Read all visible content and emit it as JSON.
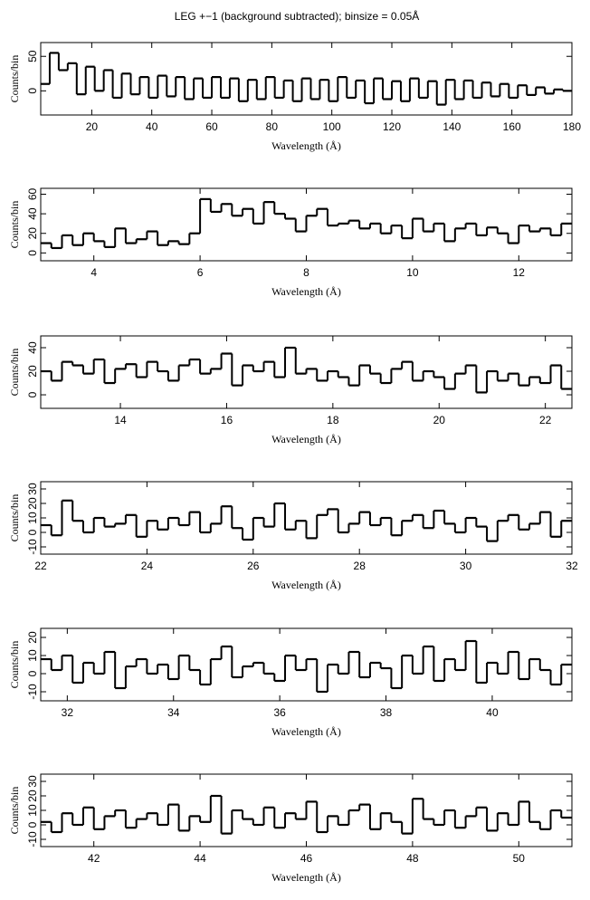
{
  "chart_data": [
    {
      "type": "step",
      "title": "LEG +−1 (background subtracted); binsize = 0.05Å",
      "xlabel": "Wavelength (Å)",
      "ylabel": "Counts/bin",
      "color": "#000000",
      "xlim": [
        3,
        180
      ],
      "ylim": [
        -35,
        70
      ],
      "xticks": [
        20,
        40,
        60,
        80,
        100,
        120,
        140,
        160,
        180
      ],
      "yticks": [
        0,
        50
      ],
      "x": [
        3,
        6,
        9,
        12,
        15,
        18,
        21,
        24,
        27,
        30,
        33,
        36,
        39,
        42,
        45,
        48,
        51,
        54,
        57,
        60,
        63,
        66,
        69,
        72,
        75,
        78,
        81,
        84,
        87,
        90,
        93,
        96,
        99,
        102,
        105,
        108,
        111,
        114,
        117,
        120,
        123,
        126,
        129,
        132,
        135,
        138,
        141,
        144,
        147,
        150,
        153,
        156,
        159,
        162,
        165,
        168,
        171,
        174,
        177,
        180
      ],
      "values": [
        10,
        55,
        30,
        40,
        -5,
        35,
        0,
        30,
        -10,
        25,
        -5,
        20,
        -10,
        22,
        -8,
        20,
        -12,
        18,
        -10,
        20,
        -10,
        18,
        -15,
        16,
        -12,
        20,
        -10,
        15,
        -15,
        18,
        -12,
        16,
        -15,
        20,
        -10,
        15,
        -18,
        18,
        -12,
        14,
        -15,
        18,
        -10,
        14,
        -20,
        16,
        -12,
        15,
        -10,
        12,
        -8,
        10,
        -10,
        8,
        -6,
        5,
        -4,
        2,
        0,
        0
      ]
    },
    {
      "type": "step",
      "xlabel": "Wavelength (Å)",
      "ylabel": "Counts/bin",
      "color": "#000000",
      "xlim": [
        3,
        13
      ],
      "ylim": [
        -8,
        66
      ],
      "xticks": [
        4,
        6,
        8,
        10,
        12
      ],
      "yticks": [
        0,
        20,
        40,
        60
      ],
      "x": [
        3.0,
        3.2,
        3.4,
        3.6,
        3.8,
        4.0,
        4.2,
        4.4,
        4.6,
        4.8,
        5.0,
        5.2,
        5.4,
        5.6,
        5.8,
        6.0,
        6.2,
        6.4,
        6.6,
        6.8,
        7.0,
        7.2,
        7.4,
        7.6,
        7.8,
        8.0,
        8.2,
        8.4,
        8.6,
        8.8,
        9.0,
        9.2,
        9.4,
        9.6,
        9.8,
        10.0,
        10.2,
        10.4,
        10.6,
        10.8,
        11.0,
        11.2,
        11.4,
        11.6,
        11.8,
        12.0,
        12.2,
        12.4,
        12.6,
        12.8
      ],
      "values": [
        10,
        5,
        18,
        8,
        20,
        12,
        6,
        25,
        10,
        14,
        22,
        8,
        12,
        9,
        20,
        55,
        42,
        50,
        38,
        45,
        30,
        52,
        40,
        35,
        22,
        38,
        45,
        28,
        30,
        33,
        25,
        30,
        20,
        28,
        15,
        35,
        22,
        30,
        12,
        25,
        30,
        18,
        26,
        20,
        10,
        28,
        22,
        25,
        18,
        30
      ]
    },
    {
      "type": "step",
      "xlabel": "Wavelength (Å)",
      "ylabel": "Counts/bin",
      "color": "#000000",
      "xlim": [
        12.5,
        22.5
      ],
      "ylim": [
        -11.5,
        50
      ],
      "xticks": [
        14,
        16,
        18,
        20,
        22
      ],
      "yticks": [
        0,
        20,
        40
      ],
      "x": [
        12.5,
        12.7,
        12.9,
        13.1,
        13.3,
        13.5,
        13.7,
        13.9,
        14.1,
        14.3,
        14.5,
        14.7,
        14.9,
        15.1,
        15.3,
        15.5,
        15.7,
        15.9,
        16.1,
        16.3,
        16.5,
        16.7,
        16.9,
        17.1,
        17.3,
        17.5,
        17.7,
        17.9,
        18.1,
        18.3,
        18.5,
        18.7,
        18.9,
        19.1,
        19.3,
        19.5,
        19.7,
        19.9,
        20.1,
        20.3,
        20.5,
        20.7,
        20.9,
        21.1,
        21.3,
        21.5,
        21.7,
        21.9,
        22.1,
        22.3
      ],
      "values": [
        20,
        12,
        28,
        25,
        18,
        30,
        10,
        22,
        26,
        15,
        28,
        20,
        12,
        25,
        30,
        18,
        22,
        35,
        8,
        25,
        20,
        28,
        15,
        40,
        18,
        22,
        12,
        20,
        15,
        8,
        25,
        18,
        10,
        22,
        28,
        12,
        20,
        15,
        5,
        18,
        25,
        2,
        20,
        12,
        18,
        8,
        15,
        10,
        25,
        5
      ]
    },
    {
      "type": "step",
      "xlabel": "Wavelength (Å)",
      "ylabel": "Counts/bin",
      "color": "#000000",
      "xlim": [
        22,
        32
      ],
      "ylim": [
        -15,
        35
      ],
      "xticks": [
        22,
        24,
        26,
        28,
        30,
        32
      ],
      "yticks": [
        -10,
        0,
        10,
        20,
        30
      ],
      "x": [
        22.0,
        22.2,
        22.4,
        22.6,
        22.8,
        23.0,
        23.2,
        23.4,
        23.6,
        23.8,
        24.0,
        24.2,
        24.4,
        24.6,
        24.8,
        25.0,
        25.2,
        25.4,
        25.6,
        25.8,
        26.0,
        26.2,
        26.4,
        26.6,
        26.8,
        27.0,
        27.2,
        27.4,
        27.6,
        27.8,
        28.0,
        28.2,
        28.4,
        28.6,
        28.8,
        29.0,
        29.2,
        29.4,
        29.6,
        29.8,
        30.0,
        30.2,
        30.4,
        30.6,
        30.8,
        31.0,
        31.2,
        31.4,
        31.6,
        31.8
      ],
      "values": [
        5,
        -2,
        22,
        8,
        0,
        10,
        4,
        6,
        12,
        -3,
        8,
        2,
        10,
        5,
        14,
        0,
        6,
        18,
        3,
        -5,
        10,
        4,
        20,
        2,
        8,
        -4,
        12,
        16,
        0,
        6,
        14,
        5,
        10,
        -2,
        8,
        12,
        3,
        15,
        6,
        0,
        10,
        4,
        -6,
        8,
        12,
        2,
        6,
        14,
        -3,
        8
      ]
    },
    {
      "type": "step",
      "xlabel": "Wavelength (Å)",
      "ylabel": "Counts/bin",
      "color": "#000000",
      "xlim": [
        31.5,
        41.5
      ],
      "ylim": [
        -15,
        25
      ],
      "xticks": [
        32,
        34,
        36,
        38,
        40
      ],
      "yticks": [
        -10,
        0,
        10,
        20
      ],
      "x": [
        31.5,
        31.7,
        31.9,
        32.1,
        32.3,
        32.5,
        32.7,
        32.9,
        33.1,
        33.3,
        33.5,
        33.7,
        33.9,
        34.1,
        34.3,
        34.5,
        34.7,
        34.9,
        35.1,
        35.3,
        35.5,
        35.7,
        35.9,
        36.1,
        36.3,
        36.5,
        36.7,
        36.9,
        37.1,
        37.3,
        37.5,
        37.7,
        37.9,
        38.1,
        38.3,
        38.5,
        38.7,
        38.9,
        39.1,
        39.3,
        39.5,
        39.7,
        39.9,
        40.1,
        40.3,
        40.5,
        40.7,
        40.9,
        41.1,
        41.3
      ],
      "values": [
        8,
        2,
        10,
        -5,
        6,
        0,
        12,
        -8,
        4,
        8,
        0,
        5,
        -3,
        10,
        2,
        -6,
        8,
        15,
        -2,
        4,
        6,
        0,
        -4,
        10,
        2,
        8,
        -10,
        5,
        0,
        12,
        -2,
        6,
        3,
        -8,
        10,
        0,
        15,
        -4,
        8,
        2,
        18,
        -5,
        6,
        0,
        12,
        -3,
        8,
        2,
        -6,
        5
      ]
    },
    {
      "type": "step",
      "xlabel": "Wavelength (Å)",
      "ylabel": "Counts/bin",
      "color": "#000000",
      "xlim": [
        41,
        51
      ],
      "ylim": [
        -15,
        35
      ],
      "xticks": [
        42,
        44,
        46,
        48,
        50
      ],
      "yticks": [
        -10,
        0,
        10,
        20,
        30
      ],
      "x": [
        41.0,
        41.2,
        41.4,
        41.6,
        41.8,
        42.0,
        42.2,
        42.4,
        42.6,
        42.8,
        43.0,
        43.2,
        43.4,
        43.6,
        43.8,
        44.0,
        44.2,
        44.4,
        44.6,
        44.8,
        45.0,
        45.2,
        45.4,
        45.6,
        45.8,
        46.0,
        46.2,
        46.4,
        46.6,
        46.8,
        47.0,
        47.2,
        47.4,
        47.6,
        47.8,
        48.0,
        48.2,
        48.4,
        48.6,
        48.8,
        49.0,
        49.2,
        49.4,
        49.6,
        49.8,
        50.0,
        50.2,
        50.4,
        50.6,
        50.8
      ],
      "values": [
        2,
        -5,
        8,
        0,
        12,
        -3,
        6,
        10,
        -2,
        4,
        8,
        0,
        14,
        -4,
        6,
        2,
        20,
        -6,
        10,
        4,
        0,
        12,
        -2,
        8,
        4,
        16,
        -5,
        6,
        0,
        10,
        14,
        -3,
        8,
        2,
        -6,
        18,
        4,
        0,
        10,
        -2,
        6,
        12,
        -4,
        8,
        0,
        16,
        2,
        -3,
        10,
        5
      ]
    }
  ]
}
